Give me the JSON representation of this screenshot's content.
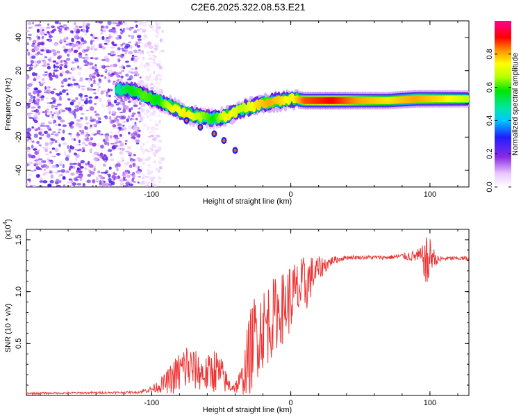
{
  "title": "C2E6.2025.322.08.53.E21",
  "chart_data": [
    {
      "type": "heatmap",
      "xlabel": "Height of straight line (km)",
      "ylabel": "Frequency (Hz)",
      "xlim": [
        -190,
        128
      ],
      "ylim": [
        -50,
        50
      ],
      "x_ticks": [
        -100,
        0,
        100
      ],
      "y_ticks": [
        -40,
        -20,
        0,
        20,
        40
      ],
      "colorbar": {
        "label": "Normalized spectral amplitude",
        "range": [
          0,
          1
        ],
        "ticks": [
          "0.0",
          "0.2",
          "0.4",
          "0.6",
          "0.8"
        ],
        "tick_values": [
          0.0,
          0.2,
          0.4,
          0.6,
          0.8
        ]
      },
      "noise_region_x": [
        -190,
        -100
      ],
      "ridge": {
        "x": [
          -125,
          -115,
          -105,
          -95,
          -85,
          -75,
          -65,
          -55,
          -45,
          -35,
          -25,
          -15,
          -5,
          0,
          10,
          30,
          50,
          70,
          90,
          110,
          128
        ],
        "freq": [
          9,
          8,
          5,
          2,
          -2,
          -6,
          -8,
          -9,
          -7,
          -3,
          -1,
          1,
          2,
          3,
          2,
          2,
          2,
          2,
          3,
          3,
          3
        ],
        "amplitude": [
          0.5,
          0.6,
          0.65,
          0.6,
          0.75,
          0.8,
          0.7,
          0.6,
          0.8,
          0.7,
          0.8,
          0.85,
          0.8,
          0.75,
          0.9,
          0.95,
          0.85,
          0.8,
          0.85,
          0.8,
          0.7
        ]
      },
      "branch": {
        "x": [
          -75,
          -65,
          -55,
          -48,
          -40
        ],
        "freq": [
          -10,
          -14,
          -18,
          -22,
          -28
        ]
      }
    },
    {
      "type": "line",
      "xlabel": "Height of straight line (km)",
      "ylabel": "SNR (10 * v/v)",
      "multiplier_label": "(x10",
      "multiplier_exp": "4",
      "multiplier_close": ")",
      "xlim": [
        -190,
        128
      ],
      "ylim": [
        0,
        1.6
      ],
      "x_ticks": [
        -100,
        0,
        100
      ],
      "y_ticks": [
        0.5,
        1.0,
        1.5
      ],
      "y_tick_labels": [
        "0.5",
        "1.0",
        "1.5"
      ],
      "color": "#ee3333",
      "series": [
        {
          "name": "SNR",
          "x": [
            -190,
            -110,
            -100,
            -90,
            -80,
            -75,
            -70,
            -65,
            -60,
            -55,
            -50,
            -45,
            -40,
            -35,
            -30,
            -25,
            -20,
            -15,
            -10,
            -5,
            0,
            5,
            10,
            15,
            20,
            30,
            40,
            50,
            60,
            70,
            80,
            90,
            95,
            98,
            100,
            102,
            105,
            110,
            128
          ],
          "y": [
            0.02,
            0.03,
            0.06,
            0.12,
            0.22,
            0.28,
            0.25,
            0.22,
            0.2,
            0.25,
            0.2,
            0.1,
            0.08,
            0.15,
            0.38,
            0.6,
            0.65,
            0.72,
            0.8,
            0.85,
            0.95,
            1.0,
            1.05,
            1.15,
            1.22,
            1.3,
            1.33,
            1.33,
            1.33,
            1.33,
            1.34,
            1.34,
            1.33,
            1.25,
            1.33,
            1.35,
            1.3,
            1.32,
            1.32
          ],
          "noise_amp": [
            0.01,
            0.01,
            0.03,
            0.1,
            0.22,
            0.25,
            0.2,
            0.18,
            0.18,
            0.22,
            0.18,
            0.08,
            0.06,
            0.15,
            0.4,
            0.45,
            0.4,
            0.4,
            0.35,
            0.35,
            0.35,
            0.3,
            0.3,
            0.2,
            0.12,
            0.04,
            0.02,
            0.02,
            0.02,
            0.02,
            0.03,
            0.06,
            0.12,
            0.3,
            0.2,
            0.1,
            0.05,
            0.02,
            0.02
          ]
        }
      ]
    }
  ]
}
